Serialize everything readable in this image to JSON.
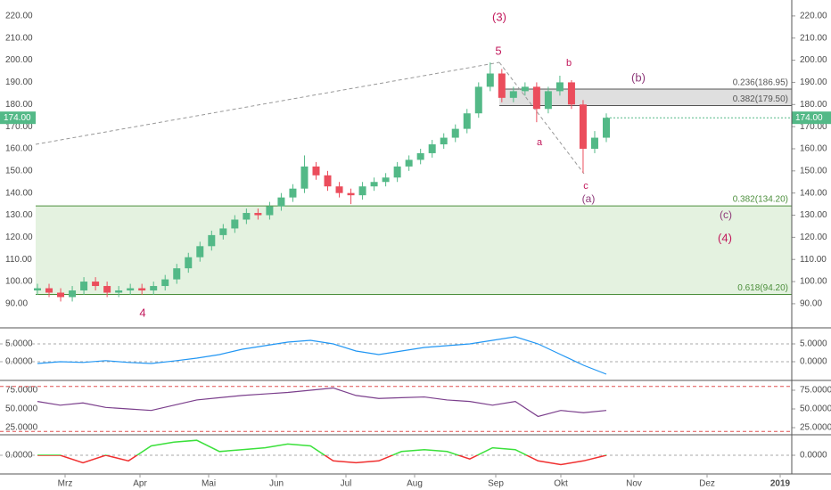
{
  "chart_data": {
    "type": "candlestick",
    "open": [
      96,
      97,
      95,
      93,
      96,
      100,
      98,
      95,
      96,
      97,
      96,
      98,
      101,
      106,
      111,
      116,
      121,
      124,
      128,
      131,
      130,
      134,
      138,
      142,
      152,
      148,
      143,
      140,
      139,
      143,
      145,
      147,
      152,
      155,
      158,
      162,
      165,
      169,
      176,
      188,
      194,
      183,
      186,
      188,
      178,
      186,
      190,
      180,
      160,
      165
    ],
    "high": [
      99,
      99,
      97,
      98,
      102,
      102,
      100,
      98,
      99,
      99,
      100,
      103,
      108,
      113,
      118,
      123,
      126,
      130,
      133,
      133,
      136,
      140,
      144,
      157,
      154,
      150,
      145,
      142,
      145,
      147,
      149,
      154,
      157,
      160,
      164,
      167,
      171,
      178,
      190,
      199,
      196,
      188,
      190,
      190,
      188,
      193,
      191,
      182,
      168,
      176
    ],
    "low": [
      94,
      93,
      91,
      91,
      94,
      96,
      93,
      93,
      94,
      94,
      94,
      96,
      99,
      104,
      109,
      114,
      119,
      122,
      126,
      128,
      128,
      132,
      136,
      140,
      146,
      141,
      138,
      135,
      137,
      141,
      143,
      145,
      150,
      153,
      156,
      160,
      163,
      167,
      174,
      186,
      181,
      181,
      184,
      172,
      176,
      184,
      178,
      149,
      158,
      163
    ],
    "close": [
      97,
      95,
      93,
      96,
      100,
      98,
      95,
      96,
      97,
      96,
      98,
      101,
      106,
      111,
      116,
      121,
      124,
      128,
      131,
      130,
      134,
      138,
      142,
      152,
      148,
      143,
      140,
      139,
      143,
      145,
      147,
      152,
      155,
      158,
      162,
      165,
      169,
      176,
      188,
      194,
      183,
      186,
      188,
      178,
      186,
      190,
      180,
      160,
      165,
      174
    ],
    "up_color": "#53b987",
    "down_color": "#eb4d5c",
    "ylim": [
      79.1,
      227.2
    ],
    "yticks": [
      {
        "value": 220,
        "label": "220.00"
      },
      {
        "value": 210,
        "label": "210.00"
      },
      {
        "value": 200,
        "label": "200.00"
      },
      {
        "value": 190,
        "label": "190.00"
      },
      {
        "value": 180,
        "label": "180.00"
      },
      {
        "value": 170,
        "label": "170.00"
      },
      {
        "value": 160,
        "label": "160.00"
      },
      {
        "value": 150,
        "label": "150.00"
      },
      {
        "value": 140,
        "label": "140.00"
      },
      {
        "value": 130,
        "label": "130.00"
      },
      {
        "value": 120,
        "label": "120.00"
      },
      {
        "value": 110,
        "label": "110.00"
      },
      {
        "value": 100,
        "label": "100.00"
      },
      {
        "value": 90,
        "label": "90.00"
      }
    ],
    "last_price": {
      "value": 174,
      "label": "174.00"
    },
    "categories": [
      "Mrz",
      "Apr",
      "Mai",
      "Jun",
      "Jul",
      "Aug",
      "Sep",
      "Okt",
      "Nov",
      "Dez",
      "2019"
    ],
    "fib": [
      {
        "value": 186.95,
        "label": "0.236(186.95)"
      },
      {
        "value": 179.5,
        "label": "0.382(179.50)"
      },
      {
        "value": 134.2,
        "label": "0.382(134.20)"
      },
      {
        "value": 94.2,
        "label": "0.618(94.20)"
      }
    ],
    "annotations": [
      "(3)",
      "5",
      "b",
      "(b)",
      "a",
      "c",
      "(a)",
      "(c)",
      "(4)",
      "4"
    ],
    "macd": {
      "ylim": [
        -4.75,
        9
      ],
      "yticks": [
        {
          "value": 5,
          "label": "5.0000"
        },
        {
          "value": 0,
          "label": "0.0000"
        }
      ],
      "color": "#2196f3",
      "values": [
        -0.5,
        0,
        -0.2,
        0.3,
        -0.2,
        -0.5,
        0.2,
        1,
        2,
        3.5,
        4.5,
        5.5,
        6,
        5,
        3,
        2,
        3,
        4,
        4.5,
        5,
        6,
        7,
        5,
        2,
        -1,
        -3.5
      ]
    },
    "rsi": {
      "ylim": [
        16.7,
        86.9
      ],
      "yticks": [
        {
          "value": 75,
          "label": "75.0000"
        },
        {
          "value": 50,
          "label": "50.0000"
        },
        {
          "value": 25,
          "label": "25.0000"
        }
      ],
      "levels": [
        80,
        20
      ],
      "color": "#7b3f8c",
      "values": [
        60,
        55,
        58,
        52,
        50,
        48,
        55,
        62,
        65,
        68,
        70,
        72,
        75,
        78,
        68,
        64,
        65,
        66,
        62,
        60,
        55,
        60,
        40,
        48,
        45,
        48
      ]
    },
    "osc": {
      "ylim": [
        -1,
        1
      ],
      "yticks": [
        {
          "value": 0,
          "label": "0.0000"
        }
      ],
      "values": [
        0,
        0,
        -0.4,
        0,
        -0.3,
        0.5,
        0.7,
        0.8,
        0.2,
        0.3,
        0.4,
        0.6,
        0.5,
        -0.3,
        -0.4,
        -0.3,
        0.2,
        0.3,
        0.2,
        -0.2,
        0.4,
        0.3,
        -0.3,
        -0.5,
        -0.3,
        0
      ]
    }
  }
}
